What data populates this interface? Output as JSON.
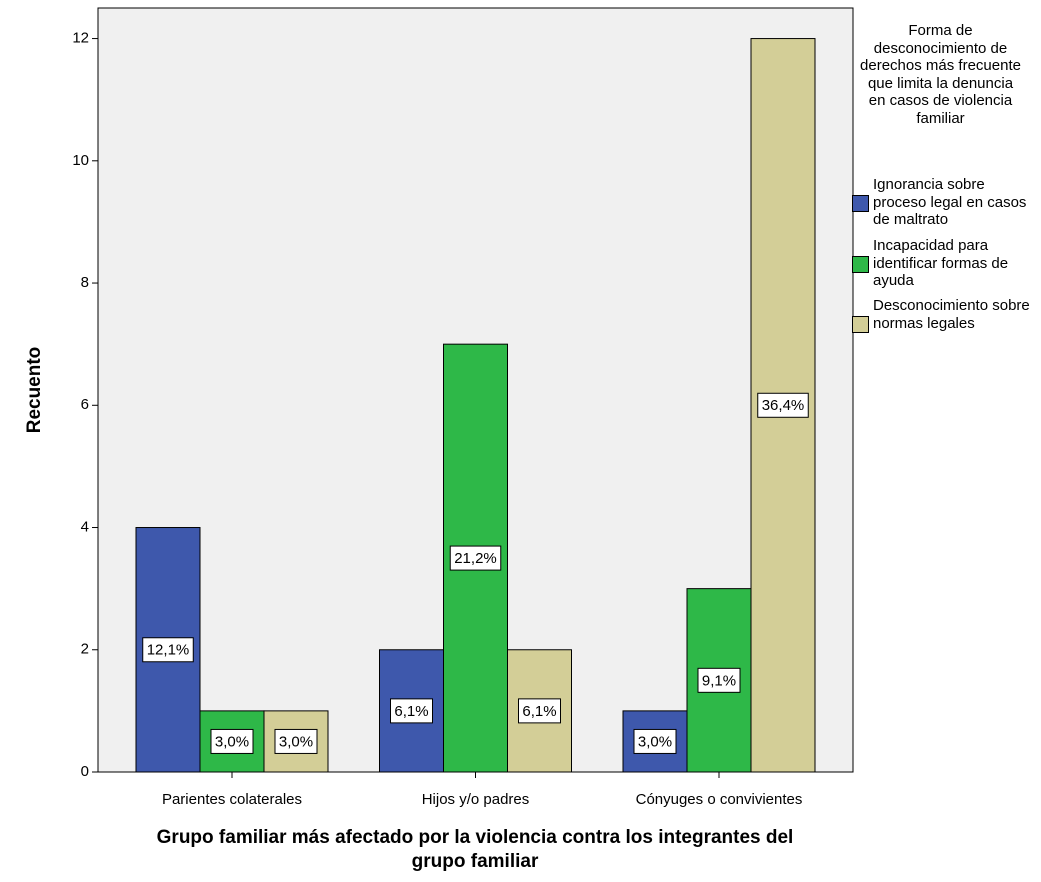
{
  "chart_data": {
    "type": "bar",
    "categories": [
      "Parientes colaterales",
      "Hijos y/o padres",
      "Cónyuges o convivientes"
    ],
    "series": [
      {
        "name": "Ignorancia sobre proceso legal en casos de maltrato",
        "color": "#3e58ac",
        "values": [
          4,
          2,
          1
        ],
        "bar_labels": [
          "12,1%",
          "6,1%",
          "3,0%"
        ]
      },
      {
        "name": "Incapacidad para identificar formas de ayuda",
        "color": "#2eb848",
        "values": [
          1,
          7,
          3
        ],
        "bar_labels": [
          "3,0%",
          "21,2%",
          "9,1%"
        ]
      },
      {
        "name": "Desconocimiento sobre normas legales",
        "color": "#d3ce97",
        "values": [
          1,
          2,
          12
        ],
        "bar_labels": [
          "3,0%",
          "6,1%",
          "36,4%"
        ]
      }
    ],
    "ylim": [
      0,
      12.5
    ],
    "yticks": [
      0,
      2,
      4,
      6,
      8,
      10,
      12
    ],
    "y_label": "Recuento",
    "x_label": "Grupo familiar más afectado por la violencia contra los integrantes del grupo familiar",
    "legend_title": "Forma de desconocimiento de derechos más frecuente que limita la denuncia en casos de violencia familiar"
  }
}
